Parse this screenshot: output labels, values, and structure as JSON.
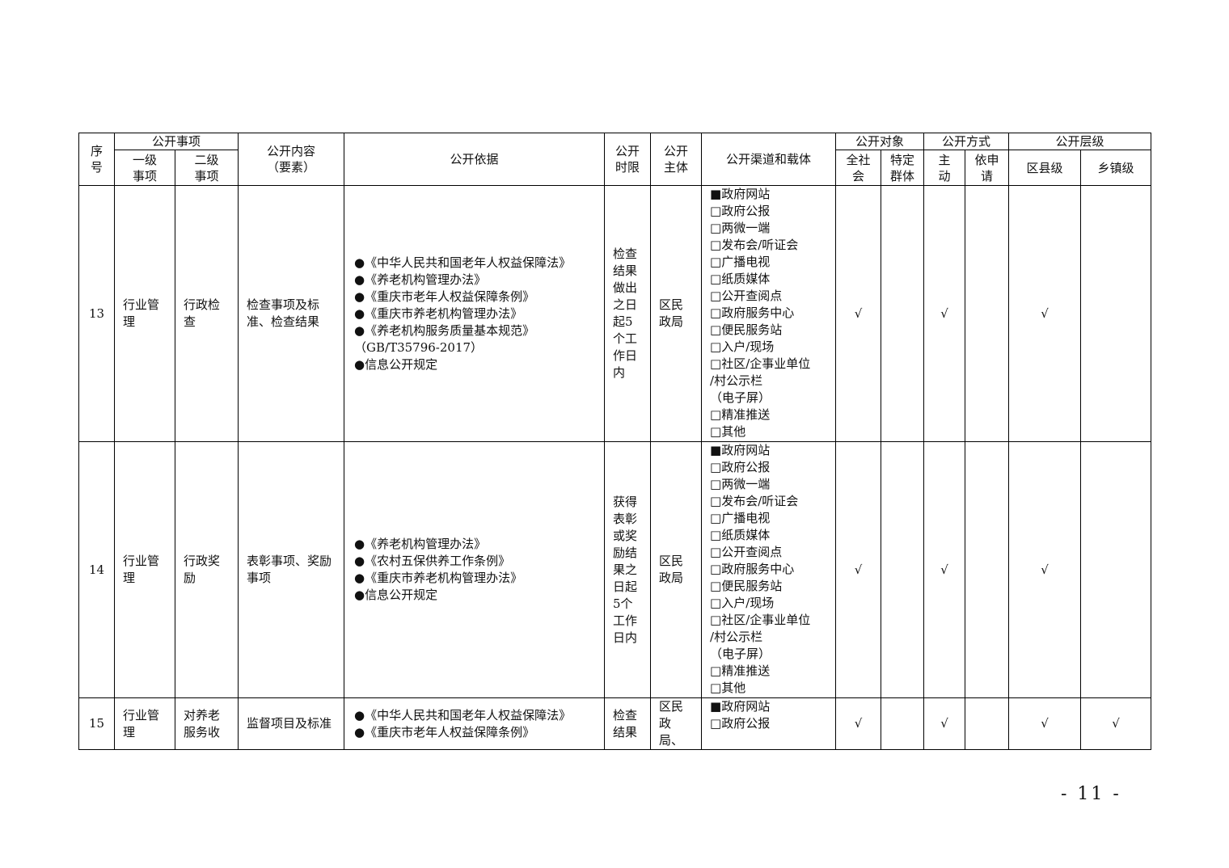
{
  "header": {
    "seq": "序号",
    "item_group": "公开事项",
    "level1": "一级事项",
    "level2": "二级事项",
    "content": "公开内容（要素）",
    "basis": "公开依据",
    "time_limit": "公开时限",
    "subject": "公开主体",
    "channels": "公开渠道和载体",
    "audience_group": "公开对象",
    "audience_all": "全社会",
    "audience_specific": "特定群体",
    "method_group": "公开方式",
    "method_active": "主动",
    "method_request": "依申请",
    "level_group": "公开层级",
    "level_county": "区县级",
    "level_town": "乡镇级"
  },
  "rows": [
    {
      "seq": "13",
      "level1": "行业管理",
      "level2": "行政检查",
      "content": "检查事项及标准、检查结果",
      "basis": [
        "●《中华人民共和国老年人权益保障法》",
        "●《养老机构管理办法》",
        "●《重庆市老年人权益保障条例》",
        "●《重庆市养老机构管理办法》",
        "●《养老机构服务质量基本规范》",
        "（GB/T35796-2017）",
        "●信息公开规定"
      ],
      "time_limit": "检查结果做出之日起5个工作日内",
      "subject": "区民政局",
      "channels": [
        "■政府网站",
        "□政府公报",
        "□两微一端",
        "□发布会/听证会",
        "□广播电视",
        "□纸质媒体",
        "□公开查阅点",
        "□政府服务中心",
        "□便民服务站",
        "□入户/现场",
        "□社区/企事业单位",
        "/村公示栏",
        "（电子屏）",
        "□精准推送",
        "□其他"
      ],
      "audience_all": "√",
      "audience_specific": "",
      "method_active": "√",
      "method_request": "",
      "level_county": "√",
      "level_town": ""
    },
    {
      "seq": "14",
      "level1": "行业管理",
      "level2": "行政奖励",
      "content": "表彰事项、奖励事项",
      "basis": [
        "●《养老机构管理办法》",
        "●《农村五保供养工作条例》",
        "●《重庆市养老机构管理办法》",
        "●信息公开规定"
      ],
      "time_limit": "获得表彰或奖励结果之日起5个工作日内",
      "subject": "区民政局",
      "channels": [
        "■政府网站",
        "□政府公报",
        "□两微一端",
        "□发布会/听证会",
        "□广播电视",
        "□纸质媒体",
        "□公开查阅点",
        "□政府服务中心",
        "□便民服务站",
        "□入户/现场",
        "□社区/企事业单位",
        "/村公示栏",
        "（电子屏）",
        "□精准推送",
        "□其他"
      ],
      "audience_all": "√",
      "audience_specific": "",
      "method_active": "√",
      "method_request": "",
      "level_county": "√",
      "level_town": ""
    },
    {
      "seq": "15",
      "level1": "行业管理",
      "level2": "对养老服务收",
      "content": "监督项目及标准",
      "basis": [
        "●《中华人民共和国老年人权益保障法》",
        "●《重庆市老年人权益保障条例》"
      ],
      "time_limit": "检查结果",
      "subject": "区民政局、",
      "channels": [
        "■政府网站",
        "□政府公报"
      ],
      "audience_all": "√",
      "audience_specific": "",
      "method_active": "√",
      "method_request": "",
      "level_county": "√",
      "level_town": "√"
    }
  ],
  "page_number": "- 11 -"
}
